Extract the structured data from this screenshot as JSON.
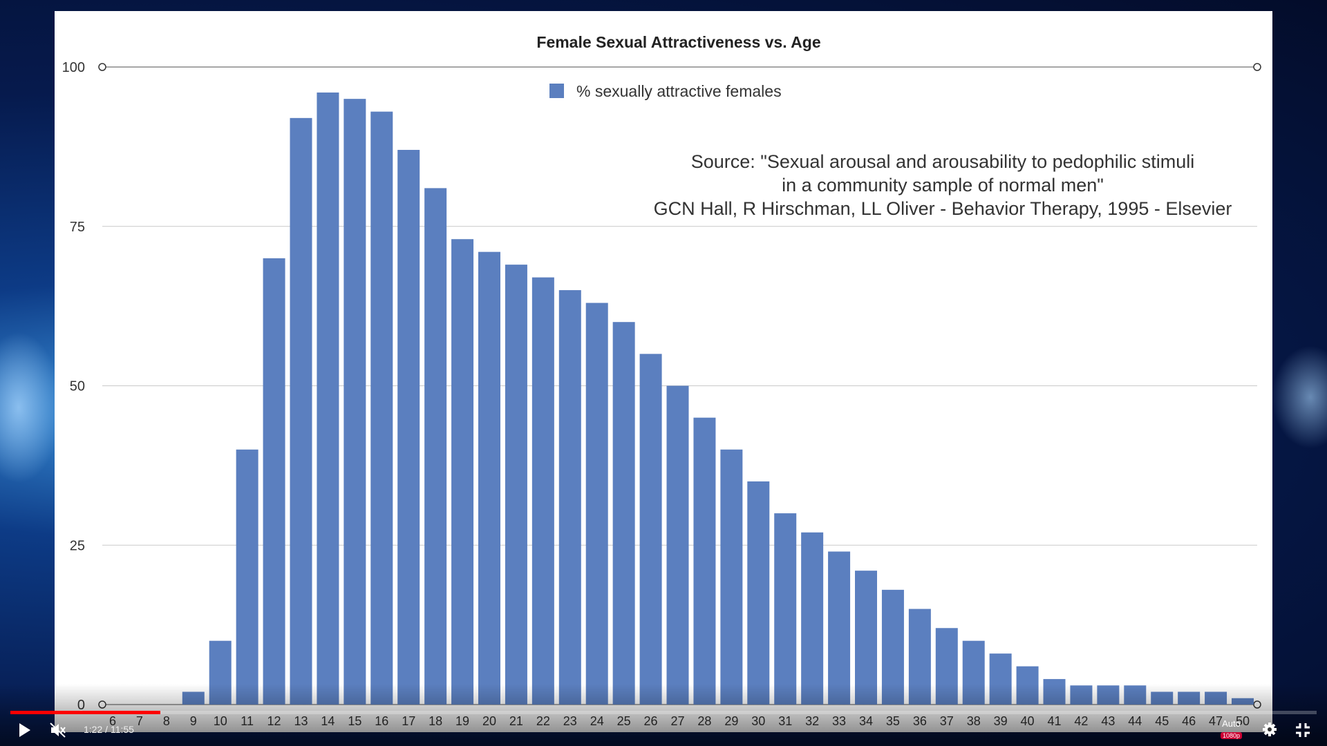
{
  "player": {
    "current_time": "1:22",
    "separator": "/",
    "duration": "11:55",
    "progress_fraction": 0.115,
    "quality_label": "Auto",
    "quality_badge": "1080p"
  },
  "chart_data": {
    "type": "bar",
    "title": "Female Sexual Attractiveness vs. Age",
    "legend": "% sexually attractive females",
    "series_color": "#5b7fbf",
    "source_lines": [
      "Source: \"Sexual arousal and arousability to pedophilic stimuli",
      "in a community sample of normal men\"",
      "GCN Hall, R Hirschman, LL Oliver - Behavior Therapy, 1995 - Elsevier"
    ],
    "ylim": [
      0,
      100
    ],
    "yticks": [
      0,
      25,
      50,
      75,
      100
    ],
    "categories": [
      "6",
      "7",
      "8",
      "9",
      "10",
      "11",
      "12",
      "13",
      "14",
      "15",
      "16",
      "17",
      "18",
      "19",
      "20",
      "21",
      "22",
      "23",
      "24",
      "25",
      "26",
      "27",
      "28",
      "29",
      "30",
      "31",
      "32",
      "33",
      "34",
      "35",
      "36",
      "37",
      "38",
      "39",
      "40",
      "41",
      "42",
      "43",
      "44",
      "45",
      "46",
      "47",
      "50"
    ],
    "values": [
      0,
      0,
      0,
      2,
      10,
      40,
      70,
      92,
      96,
      95,
      93,
      87,
      81,
      73,
      71,
      69,
      67,
      65,
      63,
      60,
      55,
      50,
      45,
      40,
      35,
      30,
      27,
      24,
      21,
      18,
      15,
      12,
      10,
      8,
      6,
      4,
      3,
      3,
      3,
      2,
      2,
      2,
      1
    ]
  }
}
